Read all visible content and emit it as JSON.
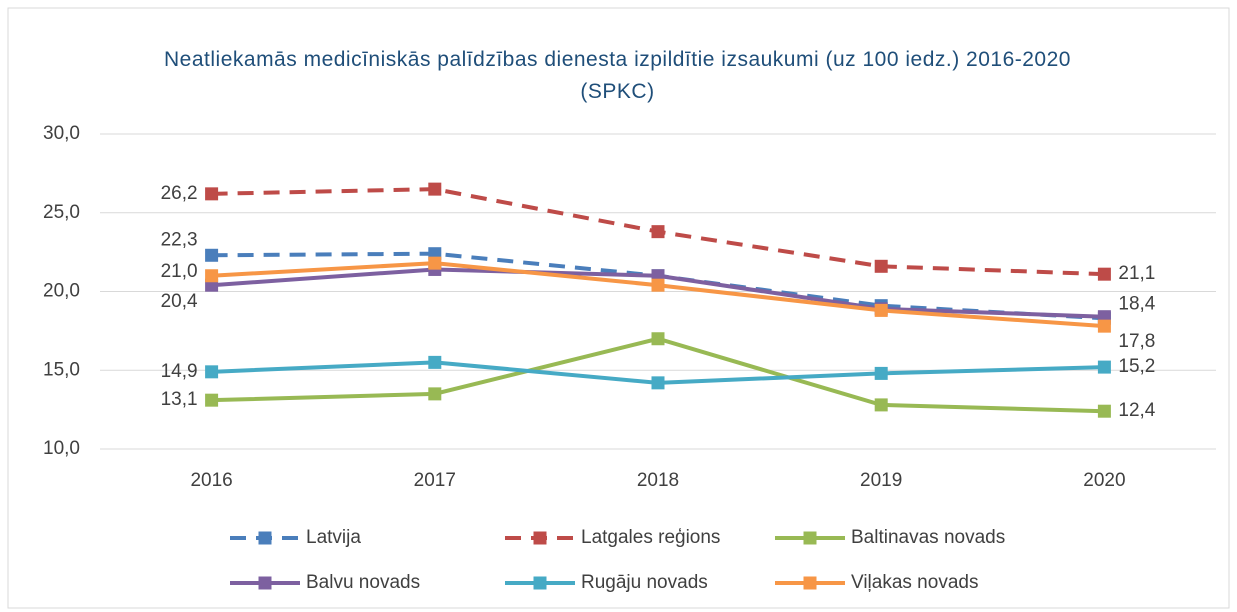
{
  "chart_data": {
    "type": "line",
    "title": "Neatliekamās medicīniskās palīdzības dienesta izpildītie izsaukumi (uz 100 iedz.) 2016-2020 (SPKC)",
    "categories": [
      "2016",
      "2017",
      "2018",
      "2019",
      "2020"
    ],
    "ylim": [
      10,
      30
    ],
    "yticks": [
      {
        "value": 10,
        "label": "10,0"
      },
      {
        "value": 15,
        "label": "15,0"
      },
      {
        "value": 20,
        "label": "20,0"
      },
      {
        "value": 25,
        "label": "25,0"
      },
      {
        "value": 30,
        "label": "30,0"
      }
    ],
    "grid": true,
    "series": [
      {
        "name": "Latvija",
        "color": "#4a7ebb",
        "dashed": true,
        "values": [
          22.3,
          22.4,
          21.0,
          19.1,
          18.3
        ],
        "value_labels": [
          "22,3",
          null,
          null,
          null,
          null
        ]
      },
      {
        "name": "Latgales reģions",
        "color": "#be4b48",
        "dashed": true,
        "values": [
          26.2,
          26.5,
          23.8,
          21.6,
          21.1
        ],
        "value_labels": [
          "26,2",
          null,
          null,
          null,
          "21,1"
        ]
      },
      {
        "name": "Baltinavas novads",
        "color": "#98b954",
        "values": [
          13.1,
          13.5,
          17.0,
          12.8,
          12.4
        ],
        "value_labels": [
          "13,1",
          null,
          null,
          null,
          "12,4"
        ]
      },
      {
        "name": "Balvu novads",
        "color": "#7d60a0",
        "values": [
          20.4,
          21.4,
          21.0,
          18.9,
          18.4
        ],
        "value_labels": [
          "20,4",
          null,
          null,
          null,
          "18,4"
        ]
      },
      {
        "name": "Rugāju novads",
        "color": "#46aac5",
        "values": [
          14.9,
          15.5,
          14.2,
          14.8,
          15.2
        ],
        "value_labels": [
          "14,9",
          null,
          null,
          null,
          "15,2"
        ]
      },
      {
        "name": "Viļakas novads",
        "color": "#f79646",
        "values": [
          21.0,
          21.8,
          20.4,
          18.8,
          17.8
        ],
        "value_labels": [
          "21,0",
          null,
          null,
          null,
          "17,8"
        ]
      }
    ]
  }
}
